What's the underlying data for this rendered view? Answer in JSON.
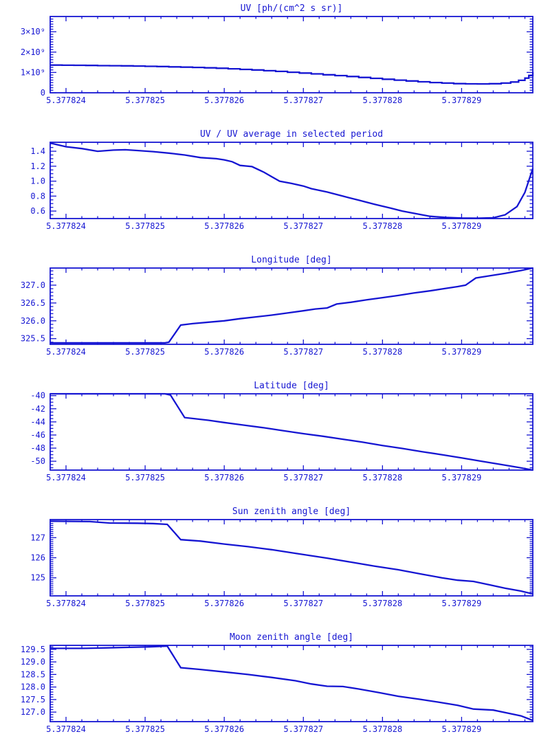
{
  "page": {
    "background": "#ffffff",
    "accent_color": "#1515d2",
    "x_axis_shared": {
      "tick_labels": [
        "5.377824",
        "5.377825",
        "5.377826",
        "5.377827",
        "5.377828",
        "5.377829"
      ],
      "base_value": 5.377824,
      "offset_scale": 1e-06,
      "xlim_offsets": [
        -0.2,
        5.9
      ],
      "major_tick_offsets": [
        0,
        1,
        2,
        3,
        4,
        5
      ],
      "minor_step_offset": 0.2
    }
  },
  "chart_data": [
    {
      "type": "line",
      "title": "UV [ph/(cm^2 s sr)]",
      "line_style": "step",
      "ylim": [
        0,
        3750000000.0
      ],
      "y_major_ticks": [
        0,
        1000000000.0,
        2000000000.0,
        3000000000.0
      ],
      "y_tick_labels": [
        "0",
        "1×10⁹",
        "2×10⁹",
        "3×10⁹"
      ],
      "y_minor_step": 125000000.0,
      "x": [
        -0.2,
        -0.05,
        0.1,
        0.25,
        0.4,
        0.55,
        0.7,
        0.85,
        1.0,
        1.15,
        1.3,
        1.45,
        1.6,
        1.75,
        1.9,
        2.05,
        2.2,
        2.35,
        2.5,
        2.65,
        2.8,
        2.95,
        3.1,
        3.25,
        3.4,
        3.55,
        3.7,
        3.85,
        4.0,
        4.15,
        4.3,
        4.45,
        4.6,
        4.75,
        4.9,
        5.05,
        5.2,
        5.35,
        5.5,
        5.62,
        5.72,
        5.8,
        5.85,
        5.9
      ],
      "y": [
        1360000000.0,
        1355000000.0,
        1350000000.0,
        1345000000.0,
        1335000000.0,
        1330000000.0,
        1325000000.0,
        1315000000.0,
        1300000000.0,
        1290000000.0,
        1275000000.0,
        1260000000.0,
        1245000000.0,
        1225000000.0,
        1205000000.0,
        1180000000.0,
        1150000000.0,
        1120000000.0,
        1085000000.0,
        1050000000.0,
        1010000000.0,
        970000000.0,
        930000000.0,
        885000000.0,
        845000000.0,
        800000000.0,
        755000000.0,
        710000000.0,
        665000000.0,
        620000000.0,
        580000000.0,
        540000000.0,
        505000000.0,
        475000000.0,
        450000000.0,
        440000000.0,
        435000000.0,
        445000000.0,
        475000000.0,
        530000000.0,
        610000000.0,
        720000000.0,
        850000000.0,
        1020000000.0
      ]
    },
    {
      "type": "line",
      "title": "UV / UV average in selected period",
      "line_style": "linear",
      "ylim": [
        0.5,
        1.52
      ],
      "y_major_ticks": [
        0.6,
        0.8,
        1.0,
        1.2,
        1.4
      ],
      "y_tick_labels": [
        "0.6",
        "0.8",
        "1.0",
        "1.2",
        "1.4"
      ],
      "y_minor_step": 0.05,
      "x": [
        -0.2,
        0.0,
        0.2,
        0.4,
        0.6,
        0.75,
        0.9,
        1.1,
        1.3,
        1.5,
        1.7,
        1.9,
        2.0,
        2.1,
        2.2,
        2.35,
        2.5,
        2.6,
        2.7,
        2.85,
        3.0,
        3.1,
        3.3,
        3.5,
        3.7,
        3.9,
        4.1,
        4.25,
        4.45,
        4.6,
        4.8,
        5.0,
        5.2,
        5.4,
        5.55,
        5.7,
        5.8,
        5.9
      ],
      "y": [
        1.51,
        1.46,
        1.435,
        1.4,
        1.415,
        1.42,
        1.41,
        1.395,
        1.375,
        1.35,
        1.315,
        1.3,
        1.285,
        1.26,
        1.21,
        1.195,
        1.12,
        1.06,
        1.0,
        0.97,
        0.935,
        0.9,
        0.855,
        0.8,
        0.745,
        0.69,
        0.64,
        0.6,
        0.56,
        0.53,
        0.515,
        0.506,
        0.505,
        0.51,
        0.55,
        0.66,
        0.85,
        1.17
      ]
    },
    {
      "type": "line",
      "title": "Longitude [deg]",
      "line_style": "linear",
      "ylim": [
        325.34,
        327.48
      ],
      "y_major_ticks": [
        325.5,
        326.0,
        326.5,
        327.0
      ],
      "y_tick_labels": [
        "325.5",
        "326.0",
        "326.5",
        "327.0"
      ],
      "y_minor_step": 0.1,
      "x": [
        -0.2,
        1.25,
        1.3,
        1.45,
        1.6,
        1.8,
        2.0,
        2.2,
        2.4,
        2.6,
        2.8,
        3.0,
        3.15,
        3.3,
        3.42,
        3.6,
        3.8,
        4.0,
        4.2,
        4.4,
        4.6,
        4.8,
        4.95,
        5.05,
        5.18,
        5.35,
        5.55,
        5.75,
        5.9
      ],
      "y": [
        325.38,
        325.38,
        325.4,
        325.88,
        325.92,
        325.96,
        326.0,
        326.06,
        326.11,
        326.16,
        326.22,
        326.28,
        326.33,
        326.36,
        326.47,
        326.52,
        326.59,
        326.65,
        326.71,
        326.78,
        326.84,
        326.91,
        326.96,
        327.0,
        327.2,
        327.26,
        327.33,
        327.41,
        327.48
      ]
    },
    {
      "type": "line",
      "title": "Latitude [deg]",
      "line_style": "linear",
      "ylim": [
        -51.35,
        -39.72
      ],
      "y_major_ticks": [
        -50,
        -48,
        -46,
        -44,
        -42,
        -40
      ],
      "y_tick_labels": [
        "-50",
        "-48",
        "-46",
        "-44",
        "-42",
        "-40"
      ],
      "y_minor_step": 0.5,
      "x": [
        -0.2,
        1.25,
        1.32,
        1.5,
        1.62,
        1.8,
        2.0,
        2.25,
        2.5,
        2.75,
        3.0,
        3.25,
        3.5,
        3.75,
        4.0,
        4.25,
        4.5,
        4.75,
        5.0,
        5.25,
        5.5,
        5.7,
        5.9
      ],
      "y": [
        -39.72,
        -39.72,
        -39.9,
        -43.35,
        -43.5,
        -43.75,
        -44.1,
        -44.5,
        -44.9,
        -45.35,
        -45.8,
        -46.2,
        -46.65,
        -47.1,
        -47.6,
        -48.05,
        -48.55,
        -49.0,
        -49.5,
        -50.0,
        -50.5,
        -50.9,
        -51.35
      ]
    },
    {
      "type": "line",
      "title": "Sun zenith angle [deg]",
      "line_style": "linear",
      "ylim": [
        124.1,
        127.9
      ],
      "y_major_ticks": [
        125,
        126,
        127
      ],
      "y_tick_labels": [
        "125",
        "126",
        "127"
      ],
      "y_minor_step": 0.1,
      "x": [
        -0.2,
        0.3,
        0.55,
        0.9,
        1.1,
        1.28,
        1.45,
        1.7,
        2.0,
        2.3,
        2.6,
        2.9,
        3.1,
        3.3,
        3.6,
        3.9,
        4.2,
        4.5,
        4.75,
        4.95,
        5.15,
        5.35,
        5.55,
        5.75,
        5.9
      ],
      "y": [
        127.82,
        127.8,
        127.73,
        127.72,
        127.7,
        127.66,
        126.9,
        126.83,
        126.68,
        126.55,
        126.4,
        126.22,
        126.1,
        125.98,
        125.78,
        125.58,
        125.4,
        125.18,
        125.0,
        124.88,
        124.82,
        124.65,
        124.48,
        124.34,
        124.2
      ]
    },
    {
      "type": "line",
      "title": "Moon zenith angle [deg]",
      "line_style": "linear",
      "ylim": [
        126.62,
        129.66
      ],
      "y_major_ticks": [
        127.0,
        127.5,
        128.0,
        128.5,
        129.0,
        129.5
      ],
      "y_tick_labels": [
        "127.0",
        "127.5",
        "128.0",
        "128.5",
        "129.0",
        "129.5"
      ],
      "y_minor_step": 0.1,
      "x": [
        -0.2,
        0.2,
        0.5,
        0.8,
        1.05,
        1.28,
        1.45,
        1.7,
        2.0,
        2.3,
        2.6,
        2.9,
        3.1,
        3.3,
        3.5,
        3.7,
        3.95,
        4.2,
        4.45,
        4.7,
        4.95,
        5.15,
        5.4,
        5.6,
        5.75,
        5.9
      ],
      "y": [
        129.54,
        129.54,
        129.56,
        129.58,
        129.6,
        129.63,
        128.77,
        128.7,
        128.6,
        128.5,
        128.38,
        128.25,
        128.12,
        128.03,
        128.02,
        127.92,
        127.78,
        127.63,
        127.52,
        127.4,
        127.27,
        127.12,
        127.08,
        126.95,
        126.85,
        126.67
      ]
    }
  ]
}
